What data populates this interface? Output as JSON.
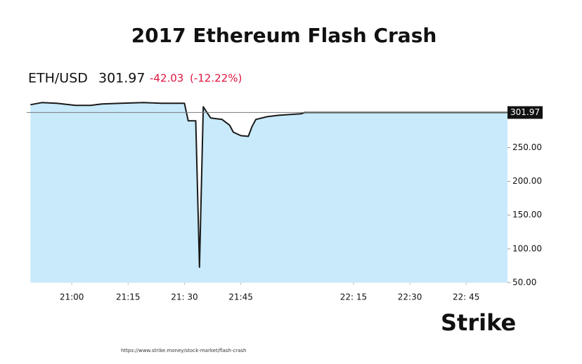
{
  "chart_data": {
    "type": "area",
    "title": "2017 Ethereum Flash Crash",
    "symbol": "ETH/USD",
    "last_price": 301.97,
    "change": -42.03,
    "change_percent": {
      "value": -12.22,
      "label": "(-12.22%)"
    },
    "reference_line": 301.97,
    "line_color": "#1a1a1a",
    "fill_color": "#c8eafa",
    "change_color": "#e0143c",
    "x": [
      "20:49",
      "20:52",
      "20:56",
      "21:01",
      "21:05",
      "21:08",
      "21:13",
      "21:19",
      "21:24",
      "21:30",
      "21:31",
      "21:33",
      "21:34",
      "21:35",
      "21:36",
      "21:37",
      "21:40",
      "21:42",
      "21:43",
      "21:45",
      "21:47",
      "21:48",
      "21:49",
      "21:52",
      "21:55",
      "22:01",
      "22:02",
      "22:56"
    ],
    "values": [
      313.5,
      316.7,
      315.6,
      312.5,
      312.5,
      314.6,
      315.6,
      316.7,
      315.6,
      315.6,
      289.6,
      289.6,
      72.9,
      310.4,
      302,
      293.8,
      291.7,
      283.3,
      272.9,
      267.7,
      266.7,
      281.3,
      291.7,
      295.8,
      297.9,
      300,
      302,
      301.97
    ],
    "xlim": [
      "20:48",
      "22:56"
    ],
    "xticks": [
      {
        "value": "21:00",
        "label": "21:00"
      },
      {
        "value": "21:15",
        "label": "21:15"
      },
      {
        "value": "21:30",
        "label": "21: 30"
      },
      {
        "value": "21:45",
        "label": "21:45"
      },
      {
        "value": "22:15",
        "label": "22: 15"
      },
      {
        "value": "22:30",
        "label": "22:30"
      },
      {
        "value": "22:45",
        "label": "22: 45"
      }
    ],
    "ylim": [
      50,
      318
    ],
    "yticks": [
      {
        "value": 50,
        "label": "50.00"
      },
      {
        "value": 100,
        "label": "100.00"
      },
      {
        "value": 150,
        "label": "150.00"
      },
      {
        "value": 200,
        "label": "200.00"
      },
      {
        "value": 250,
        "label": "250.00"
      }
    ]
  },
  "logo": "Strike",
  "source_url": "https://www.strike.money/stock-market/flash-crash"
}
